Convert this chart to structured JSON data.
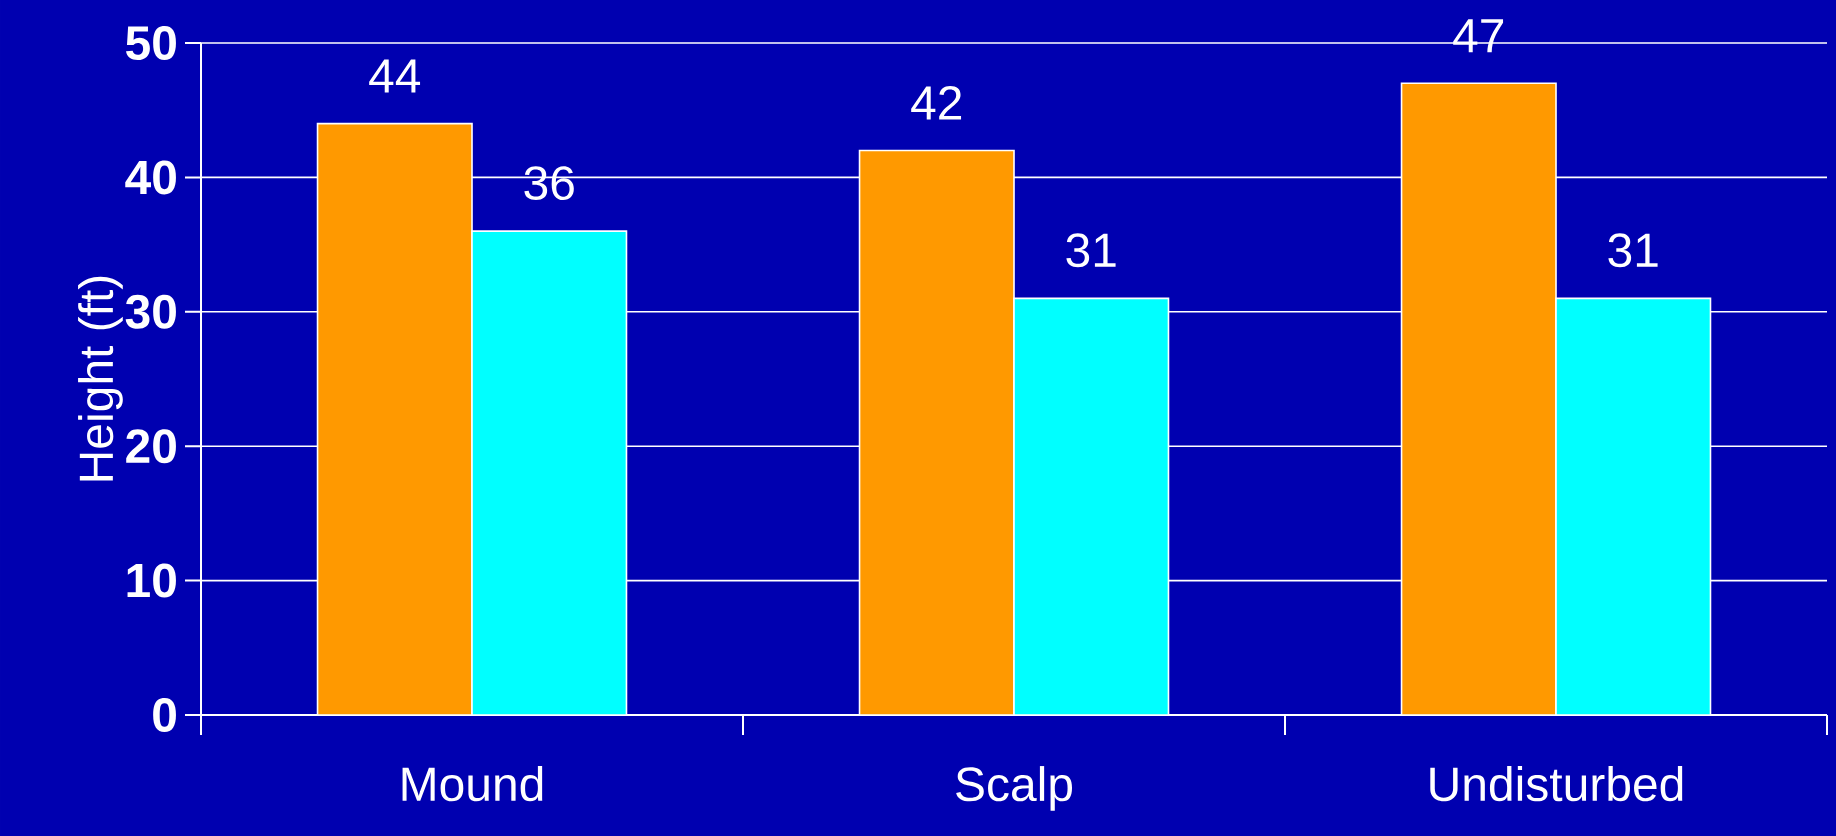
{
  "chart_data": {
    "type": "bar",
    "ylabel": "Height (ft)",
    "categories": [
      "Mound",
      "Scalp",
      "Undisturbed"
    ],
    "series": [
      {
        "color": "#ff9900",
        "values": [
          44,
          42,
          47
        ]
      },
      {
        "color": "#00ffff",
        "values": [
          36,
          31,
          31
        ]
      }
    ],
    "ylim": [
      0,
      50
    ],
    "yticks": [
      0,
      10,
      20,
      30,
      40,
      50
    ],
    "grid": "y",
    "data_labels": true
  }
}
